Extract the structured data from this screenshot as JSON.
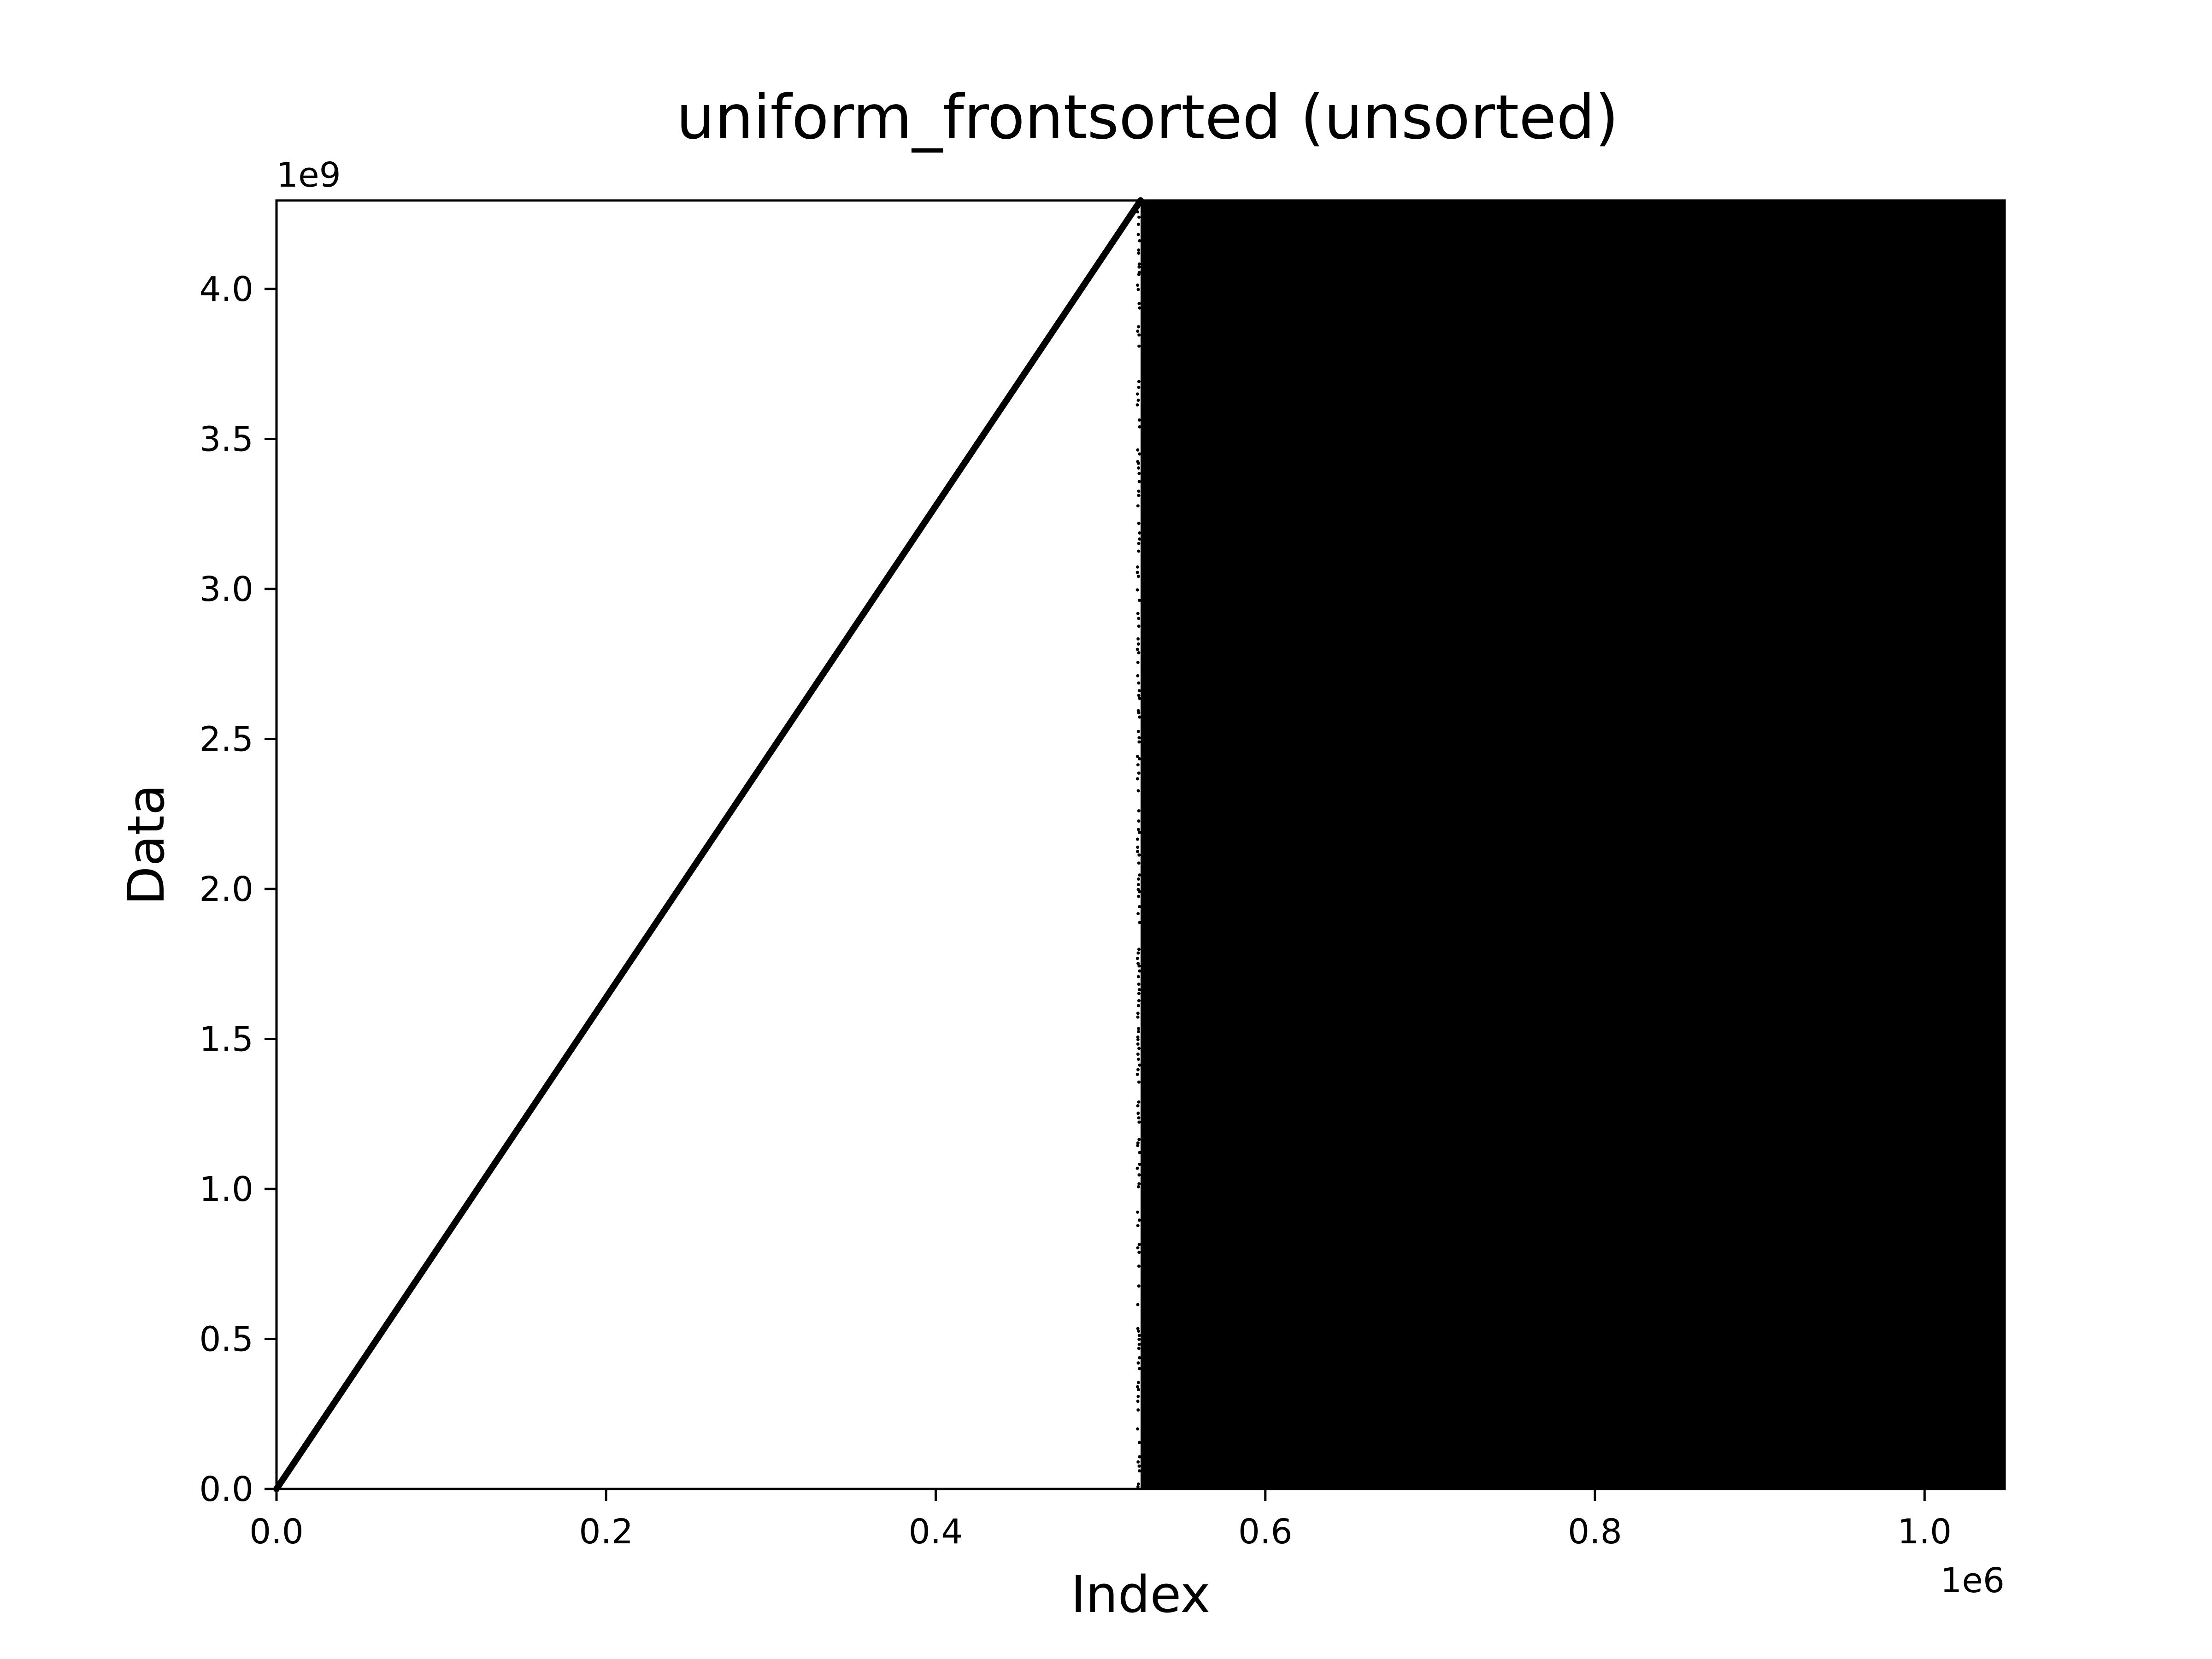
{
  "chart_data": {
    "type": "scatter",
    "title": "uniform_frontsorted (unsorted)",
    "xlabel": "Index",
    "ylabel": "Data",
    "x_offset_label": "1e6",
    "y_offset_label": "1e9",
    "xlim": [
      0,
      1048576
    ],
    "ylim": [
      0,
      4294967296
    ],
    "x_ticks": [
      0.0,
      0.2,
      0.4,
      0.6,
      0.8,
      1.0
    ],
    "x_tick_labels": [
      "0.0",
      "0.2",
      "0.4",
      "0.6",
      "0.8",
      "1.0"
    ],
    "y_ticks": [
      0.0,
      0.5,
      1.0,
      1.5,
      2.0,
      2.5,
      3.0,
      3.5,
      4.0
    ],
    "y_tick_labels": [
      "0.0",
      "0.5",
      "1.0",
      "1.5",
      "2.0",
      "2.5",
      "3.0",
      "3.5",
      "4.0"
    ],
    "grid": false,
    "series": [
      {
        "description": "sorted front half",
        "pattern": "linear",
        "x_range": [
          0,
          524288
        ],
        "y_range": [
          0,
          4294967296
        ],
        "color": "#000000"
      },
      {
        "description": "unsorted back half",
        "pattern": "uniform_random",
        "x_range": [
          524288,
          1048576
        ],
        "y_range": [
          0,
          4294967296
        ],
        "color": "#000000"
      }
    ]
  }
}
